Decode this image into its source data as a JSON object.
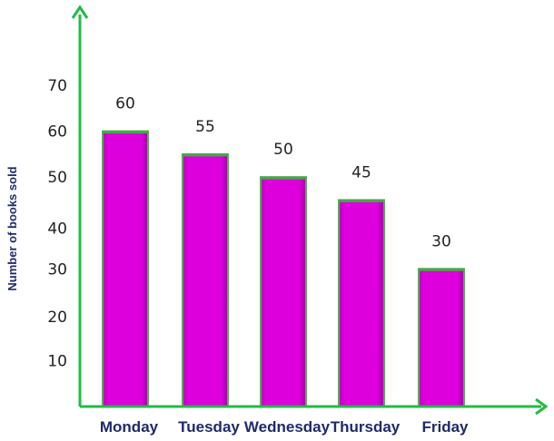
{
  "chart_data": {
    "type": "bar",
    "title": "",
    "xlabel": "",
    "ylabel": "Number of books sold",
    "categories": [
      "Monday",
      "Tuesday",
      "Wednesday",
      "Thursday",
      "Friday"
    ],
    "values": [
      60,
      55,
      50,
      45,
      30
    ],
    "data_labels": [
      "60",
      "55",
      "50",
      "45",
      "30"
    ],
    "y_ticks": [
      10,
      20,
      30,
      40,
      50,
      60,
      70
    ],
    "ylim": [
      0,
      70
    ],
    "grid": false,
    "legend": "none",
    "colors": {
      "bar_fill": "#dd00dd",
      "bar_edge": "#5aaa5a",
      "axis": "#22bb44",
      "category_text": "#1f2a6b",
      "value_text": "#222222"
    }
  }
}
